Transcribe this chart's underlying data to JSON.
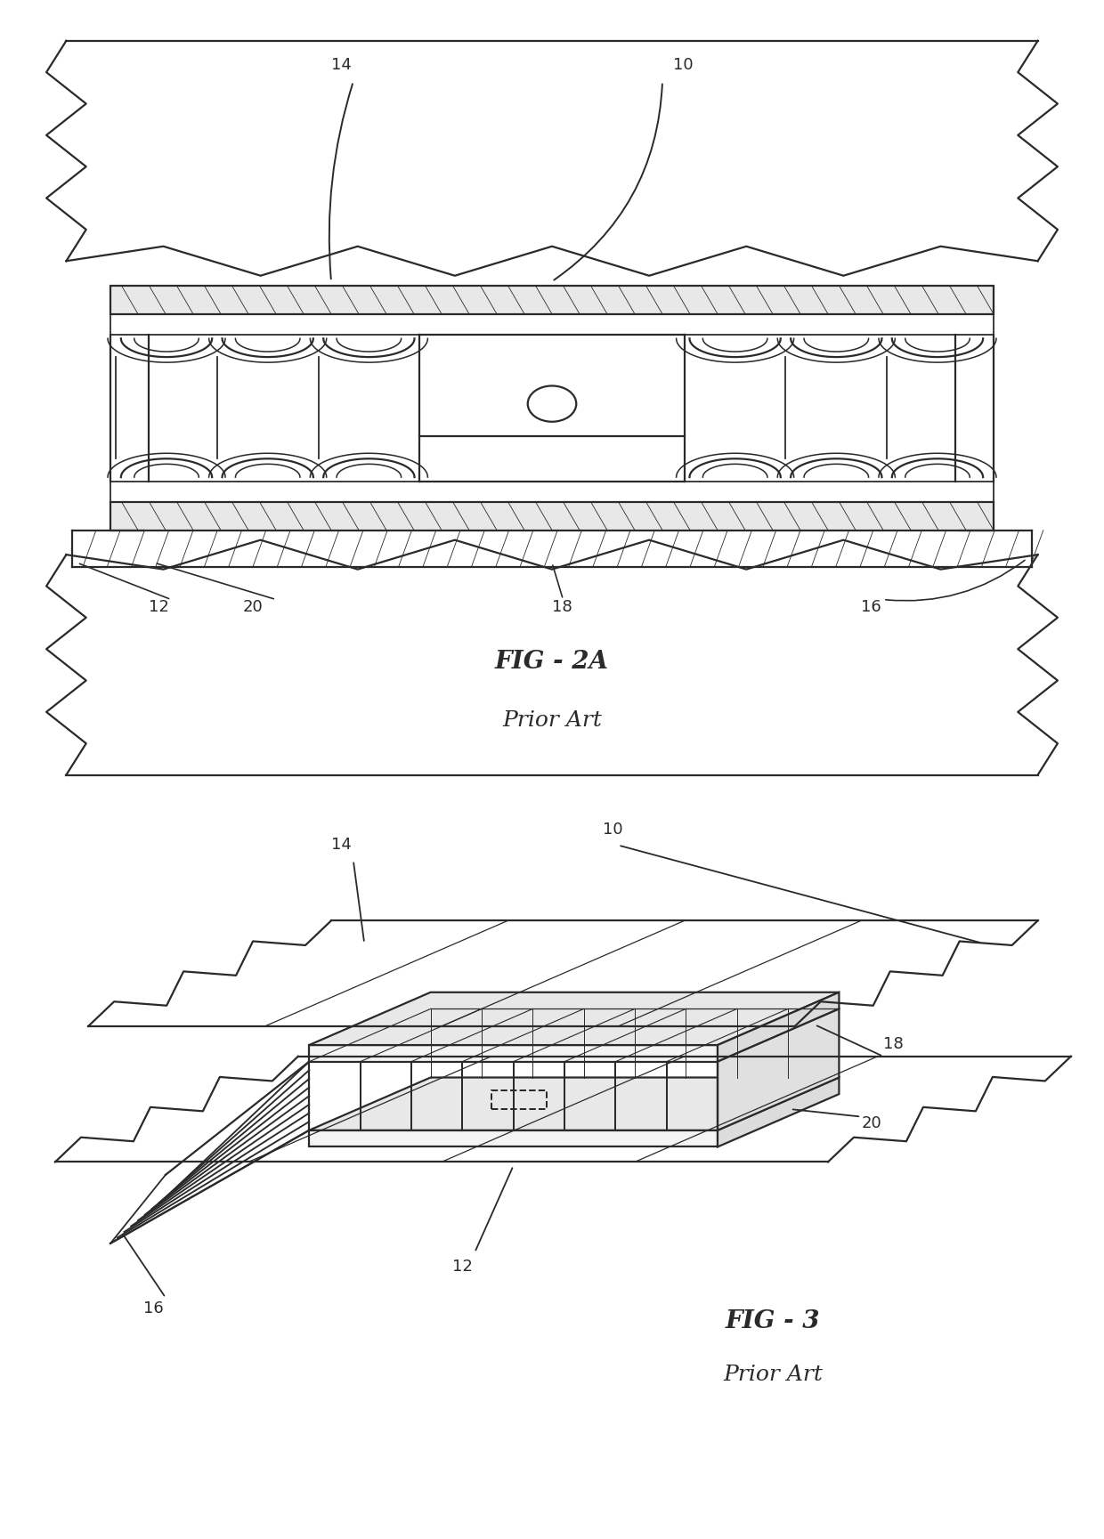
{
  "bg_color": "#ffffff",
  "line_color": "#2a2a2a",
  "line_width": 1.6,
  "fig_width": 12.4,
  "fig_height": 17.29,
  "fig1_label": "FIG - 2A",
  "fig1_sublabel": "Prior Art",
  "fig2_label": "FIG - 3",
  "fig2_sublabel": "Prior Art"
}
